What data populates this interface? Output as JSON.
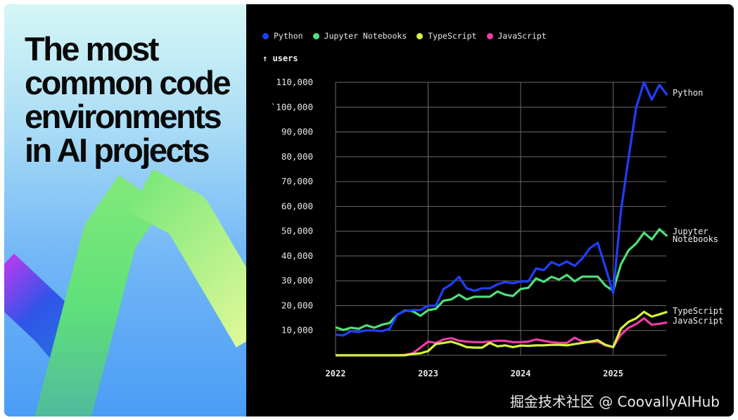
{
  "headline": "The most\ncommon code\nenvironments\nin AI projects",
  "watermark": "掘金技术社区 @ CoovallyAIHub",
  "chart_data": {
    "type": "line",
    "title": "",
    "ylabel": "↑ users",
    "xlabel": "",
    "x_start": "2022-01",
    "x_frequency": "monthly",
    "x_ticks": [
      "2022",
      "2023",
      "2024",
      "2025"
    ],
    "ylim": [
      0,
      110000
    ],
    "y_ticks": [
      10000,
      20000,
      30000,
      40000,
      50000,
      60000,
      70000,
      80000,
      90000,
      100000,
      110000
    ],
    "y_tick_labels": [
      "10,000",
      "20,000",
      "30,000",
      "40,000",
      "50,000",
      "60,000",
      "70,000",
      "80,000",
      "90,000",
      "`100,000",
      "110,000"
    ],
    "grid": true,
    "legend_placement": "top-left",
    "background": "#000000",
    "series": [
      {
        "name": "Python",
        "end_label": "Python",
        "color": "#1f3fff",
        "values": [
          8300,
          8000,
          9700,
          9400,
          10000,
          10000,
          9700,
          10700,
          16300,
          17800,
          18200,
          18200,
          20000,
          20000,
          26700,
          28600,
          31600,
          27000,
          26000,
          27000,
          27000,
          28600,
          29500,
          29000,
          29800,
          29800,
          35000,
          34300,
          37600,
          36200,
          37800,
          36000,
          39000,
          43200,
          45300,
          35400,
          25000,
          57900,
          79600,
          100000,
          110000,
          103000,
          109000,
          104800
        ]
      },
      {
        "name": "Jupyter Notebooks",
        "end_label": "Jupyter\nNotebooks",
        "color": "#4fe07a",
        "values": [
          11300,
          10200,
          11100,
          10700,
          12100,
          11100,
          12300,
          13000,
          16300,
          18000,
          17800,
          15900,
          18200,
          18700,
          22000,
          22500,
          24400,
          22500,
          23600,
          23600,
          23600,
          25700,
          24400,
          23900,
          26700,
          27200,
          31000,
          29600,
          31600,
          30500,
          32400,
          29800,
          31700,
          31700,
          31700,
          28100,
          26000,
          36600,
          42300,
          45100,
          49400,
          46700,
          50800,
          48000
        ]
      },
      {
        "name": "TypeScript",
        "end_label": "TypeScript",
        "color": "#d8f23a",
        "values": [
          0,
          0,
          0,
          0,
          0,
          0,
          0,
          0,
          0,
          0,
          500,
          800,
          1700,
          4500,
          5000,
          5500,
          4500,
          3300,
          3100,
          3100,
          5000,
          3600,
          4000,
          3300,
          3900,
          3800,
          4000,
          4000,
          4200,
          4200,
          4000,
          4500,
          5000,
          5500,
          6100,
          4200,
          3300,
          10700,
          13500,
          14900,
          17500,
          15600,
          16500,
          17500
        ]
      },
      {
        "name": "JavaScript",
        "end_label": "JavaScript",
        "color": "#f03aa8",
        "values": [
          0,
          0,
          0,
          0,
          0,
          0,
          0,
          0,
          0,
          200,
          800,
          3100,
          5500,
          5000,
          6400,
          6900,
          5900,
          5500,
          5300,
          5300,
          5500,
          5900,
          5800,
          5300,
          5300,
          5500,
          6400,
          5800,
          5300,
          5000,
          5000,
          7100,
          5500,
          5300,
          5500,
          4000,
          3300,
          8300,
          11100,
          12600,
          14900,
          12300,
          12700,
          13200
        ]
      }
    ]
  }
}
